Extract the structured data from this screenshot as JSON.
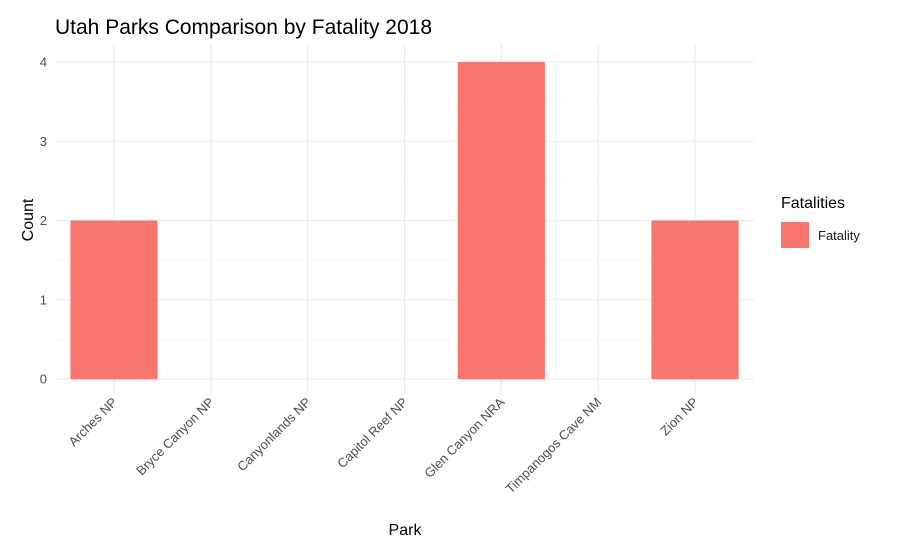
{
  "chart_data": {
    "type": "bar",
    "title": "Utah Parks Comparison by Fatality 2018",
    "xlabel": "Park",
    "ylabel": "Count",
    "categories": [
      "Arches NP",
      "Bryce Canyon NP",
      "Canyonlands NP",
      "Capitol Reef NP",
      "Glen Canyon NRA",
      "Timpanogos Cave NM",
      "Zion NP"
    ],
    "series": [
      {
        "name": "Fatality",
        "values": [
          2,
          0,
          0,
          0,
          4,
          0,
          2
        ],
        "color": "#F8766D"
      }
    ],
    "ylim": [
      0,
      4.2
    ],
    "yticks": [
      "0",
      "1",
      "2",
      "3",
      "4"
    ],
    "grid": true,
    "legend": {
      "title": "Fatalities",
      "position": "right"
    }
  }
}
